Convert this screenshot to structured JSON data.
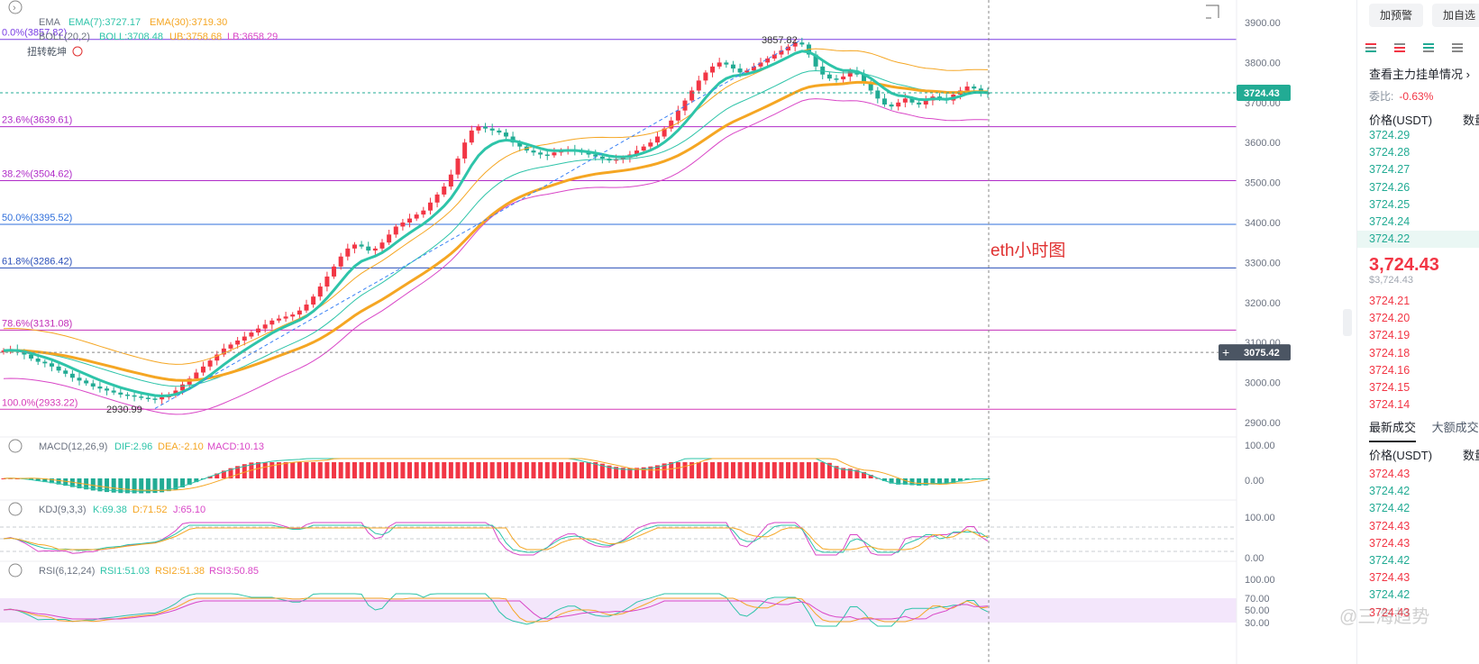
{
  "chart_data": {
    "type": "candlestick",
    "symbol_note": "eth小时图",
    "price_axis": {
      "ticks": [
        3900,
        3800,
        3700,
        3600,
        3500,
        3400,
        3300,
        3200,
        3100,
        3000,
        2900
      ],
      "tick_labels": [
        "3900.00",
        "3800.00",
        "3700.00",
        "3600.00",
        "3500.00",
        "3400.00",
        "3300.00",
        "3200.00",
        "3100.00",
        "3000.00",
        "2900.00"
      ],
      "ylim": [
        2870,
        3935
      ]
    },
    "last_price_label": "3724.43",
    "crosshair_price_label": "3075.42",
    "indicators": {
      "ema": {
        "name": "EMA",
        "ema7": "EMA(7):3727.17",
        "ema30": "EMA(30):3719.30"
      },
      "boll": {
        "name": "BOLL(20,2)",
        "boll": "BOLL:3708.48",
        "ub": "UB:3758.68",
        "lb": "LB:3658.29"
      },
      "signal": "扭转乾坤"
    },
    "fib_levels": [
      {
        "label": "0.0%(3857.82)",
        "price": 3857.82,
        "color": "#7b3fe4"
      },
      {
        "label": "23.6%(3639.61)",
        "price": 3639.61,
        "color": "#b02cc8"
      },
      {
        "label": "38.2%(3504.62)",
        "price": 3504.62,
        "color": "#b02cc8"
      },
      {
        "label": "50.0%(3395.52)",
        "price": 3395.52,
        "color": "#2f6fdb"
      },
      {
        "label": "61.8%(3286.42)",
        "price": 3286.42,
        "color": "#2a4fb8"
      },
      {
        "label": "78.6%(3131.08)",
        "price": 3131.08,
        "color": "#c22fb8"
      },
      {
        "label": "100.0%(2933.22)",
        "price": 2933.22,
        "color": "#d63ab8"
      }
    ],
    "high_marker": "3857.82",
    "low_marker": "2930.99",
    "close_series": [
      3080,
      3083,
      3078,
      3070,
      3060,
      3052,
      3048,
      3040,
      3030,
      3022,
      3012,
      3005,
      2998,
      2990,
      2985,
      2980,
      2975,
      2970,
      2968,
      2965,
      2962,
      2960,
      2958,
      2963,
      2970,
      2980,
      2995,
      3010,
      3025,
      3040,
      3055,
      3070,
      3085,
      3095,
      3105,
      3115,
      3125,
      3135,
      3145,
      3155,
      3160,
      3165,
      3170,
      3180,
      3195,
      3215,
      3240,
      3265,
      3290,
      3315,
      3335,
      3345,
      3340,
      3330,
      3335,
      3350,
      3370,
      3390,
      3400,
      3410,
      3420,
      3430,
      3450,
      3470,
      3490,
      3520,
      3560,
      3600,
      3630,
      3640,
      3635,
      3630,
      3625,
      3615,
      3600,
      3590,
      3580,
      3575,
      3570,
      3568,
      3575,
      3580,
      3582,
      3580,
      3575,
      3570,
      3565,
      3560,
      3555,
      3558,
      3562,
      3570,
      3580,
      3590,
      3600,
      3615,
      3635,
      3655,
      3680,
      3705,
      3730,
      3755,
      3775,
      3790,
      3800,
      3795,
      3785,
      3775,
      3780,
      3790,
      3800,
      3810,
      3820,
      3830,
      3840,
      3850,
      3845,
      3820,
      3790,
      3770,
      3760,
      3758,
      3765,
      3780,
      3770,
      3750,
      3730,
      3710,
      3695,
      3690,
      3700,
      3710,
      3700,
      3695,
      3705,
      3715,
      3710,
      3705,
      3720,
      3730,
      3740,
      3735,
      3725,
      3724
    ],
    "macd": {
      "label": "MACD(12,26,9)",
      "dif": "DIF:2.96",
      "dea": "DEA:-2.10",
      "macd": "MACD:10.13",
      "ticks": [
        "100.00",
        "0.00"
      ]
    },
    "kdj": {
      "label": "KDJ(9,3,3)",
      "k": "K:69.38",
      "d": "D:71.52",
      "j": "J:65.10",
      "ticks": [
        "100.00",
        "0.00"
      ]
    },
    "rsi": {
      "label": "RSI(6,12,24)",
      "rsi1": "RSI1:51.03",
      "rsi2": "RSI2:51.38",
      "rsi3": "RSI3:50.85",
      "ticks": [
        "100.00",
        "70.00",
        "50.00",
        "30.00"
      ]
    },
    "colors": {
      "up": "#f23645",
      "down": "#22ab94",
      "ema7": "#2ec4a9",
      "ema30": "#f5a623",
      "boll_ub": "#f5a623",
      "boll_lb": "#d946c7",
      "boll_mid": "#2ec4a9"
    }
  },
  "sidebar": {
    "add_alert": "加预警",
    "add_watch": "加自选",
    "main_orders": "查看主力挂单情况",
    "ratio_label": "委比:",
    "ratio_value": "-0.63%",
    "price_header": "价格(USDT)",
    "qty_header": "数量",
    "asks": [
      "3724.29",
      "3724.28",
      "3724.27",
      "3724.26",
      "3724.25",
      "3724.24",
      "3724.22"
    ],
    "last_price": "3,724.43",
    "last_price_sub": "$3,724.43",
    "bids": [
      "3724.21",
      "3724.20",
      "3724.19",
      "3724.18",
      "3724.16",
      "3724.15",
      "3724.14"
    ],
    "tab_latest": "最新成交",
    "tab_large": "大额成交",
    "trades_price_header": "价格(USDT)",
    "trades_qty_header": "数量",
    "trades": [
      {
        "p": "3724.43",
        "side": "dn"
      },
      {
        "p": "3724.42",
        "side": "up"
      },
      {
        "p": "3724.42",
        "side": "up"
      },
      {
        "p": "3724.43",
        "side": "dn"
      },
      {
        "p": "3724.43",
        "side": "dn"
      },
      {
        "p": "3724.42",
        "side": "up"
      },
      {
        "p": "3724.43",
        "side": "dn"
      },
      {
        "p": "3724.42",
        "side": "up"
      },
      {
        "p": "3724.43",
        "side": "dn"
      }
    ]
  }
}
